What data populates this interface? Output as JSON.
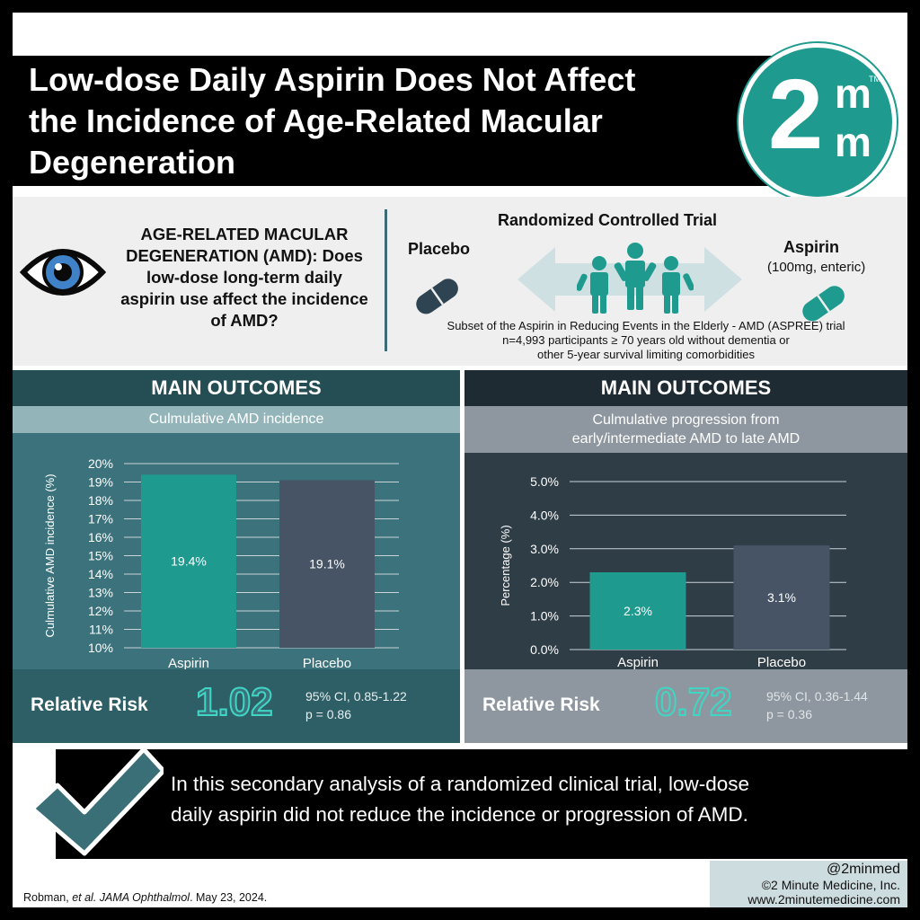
{
  "header": {
    "title_lines": [
      "Low-dose Daily Aspirin Does Not Affect",
      "the Incidence of Age-Related Macular",
      "Degeneration"
    ],
    "logo": {
      "numeral": "2",
      "letter": "m",
      "tm": "TM"
    }
  },
  "intro": {
    "question": "AGE-RELATED MACULAR DEGENERATION (AMD): Does low-dose long-term daily aspirin use affect the incidence of AMD?",
    "rct_title": "Randomized Controlled Trial",
    "placebo_label": "Placebo",
    "aspirin_label": "Aspirin",
    "aspirin_dose": "(100mg, enteric)",
    "trial_lines": [
      "Subset of the Aspirin in Reducing Events in the Elderly - AMD (ASPREE) trial",
      "n=4,993 participants ≥ 70 years old without dementia or",
      "other 5-year survival limiting comorbidities"
    ],
    "icons": [
      "eye-icon",
      "pill-icon",
      "people-icon",
      "double-arrow-icon"
    ]
  },
  "left_panel": {
    "heading": "MAIN OUTCOMES",
    "subheading": "Culmulative AMD incidence",
    "relative_risk_label": "Relative Risk",
    "relative_risk_value": "1.02",
    "ci_text": "95% CI, 0.85-1.22",
    "p_text": "p = 0.86"
  },
  "right_panel": {
    "heading": "MAIN OUTCOMES",
    "subheading_lines": [
      "Culmulative progression from",
      "early/intermediate AMD to late AMD"
    ],
    "relative_risk_label": "Relative Risk",
    "relative_risk_value": "0.72",
    "ci_text": "95% CI, 0.36-1.44",
    "p_text": "p = 0.36"
  },
  "chart_data": [
    {
      "type": "bar",
      "categories": [
        "Aspirin",
        "Placebo"
      ],
      "values": [
        19.4,
        19.1
      ],
      "value_labels": [
        "19.4%",
        "19.1%"
      ],
      "ylabel": "Culmulative AMD incidence (%)",
      "ylim": [
        10,
        20
      ],
      "yticks": [
        10,
        11,
        12,
        13,
        14,
        15,
        16,
        17,
        18,
        19,
        20
      ],
      "ytick_labels": [
        "10%",
        "11%",
        "12%",
        "13%",
        "14%",
        "15%",
        "16%",
        "17%",
        "18%",
        "19%",
        "20%"
      ],
      "grid": true,
      "colors": [
        "#1e9a8e",
        "#465466"
      ]
    },
    {
      "type": "bar",
      "categories": [
        "Aspirin",
        "Placebo"
      ],
      "values": [
        2.3,
        3.1
      ],
      "value_labels": [
        "2.3%",
        "3.1%"
      ],
      "ylabel": "Percentage (%)",
      "ylim": [
        0,
        5
      ],
      "yticks": [
        0,
        1,
        2,
        3,
        4,
        5
      ],
      "ytick_labels": [
        "0.0%",
        "1.0%",
        "2.0%",
        "3.0%",
        "4.0%",
        "5.0%"
      ],
      "grid": true,
      "colors": [
        "#1e9a8e",
        "#465466"
      ]
    }
  ],
  "conclusion": {
    "lines": [
      "In this secondary analysis of a randomized clinical trial, low-dose",
      "daily aspirin did not reduce the incidence or progression of AMD."
    ]
  },
  "citation": {
    "author": "Robman, ",
    "etal": "et al.",
    "journal": "JAMA Ophthalmol",
    "date": ". May 23, 2024."
  },
  "credit": {
    "handle": "@2minmed",
    "copyright": "©2 Minute Medicine, Inc.",
    "website": "www.2minutemedicine.com"
  }
}
